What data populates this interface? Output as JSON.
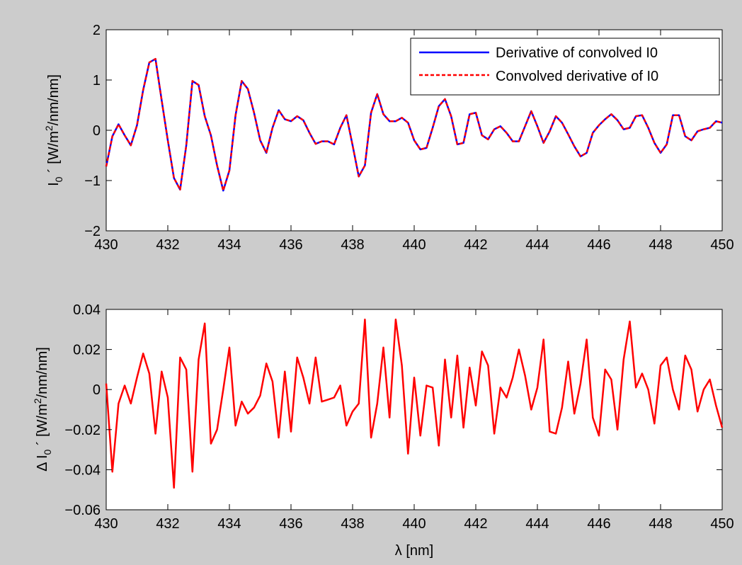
{
  "figure": {
    "background": "#cccccc"
  },
  "chart_data": [
    {
      "type": "line",
      "xlabel": "",
      "ylabel": "I0´ [W/m2/nm/nm]",
      "xlim": [
        430,
        450
      ],
      "ylim": [
        -2,
        2
      ],
      "x_ticks": [
        430,
        432,
        434,
        436,
        438,
        440,
        442,
        444,
        446,
        448,
        450
      ],
      "x_tick_labels": [
        "430",
        "432",
        "434",
        "436",
        "438",
        "440",
        "442",
        "444",
        "446",
        "448",
        "450"
      ],
      "y_ticks": [
        -2,
        -1,
        0,
        1,
        2
      ],
      "y_tick_labels": [
        "−2",
        "−1",
        "0",
        "1",
        "2"
      ],
      "grid": false,
      "legend": {
        "position": "top-right",
        "entries": [
          "Derivative of convolved I0",
          "Convolved derivative of I0"
        ]
      },
      "x": [
        430.0,
        430.2,
        430.4,
        430.6,
        430.8,
        431.0,
        431.2,
        431.4,
        431.6,
        431.8,
        432.0,
        432.2,
        432.4,
        432.6,
        432.8,
        433.0,
        433.2,
        433.4,
        433.6,
        433.8,
        434.0,
        434.2,
        434.4,
        434.6,
        434.8,
        435.0,
        435.2,
        435.4,
        435.6,
        435.8,
        436.0,
        436.2,
        436.4,
        436.6,
        436.8,
        437.0,
        437.2,
        437.4,
        437.6,
        437.8,
        438.0,
        438.2,
        438.4,
        438.6,
        438.8,
        439.0,
        439.2,
        439.4,
        439.6,
        439.8,
        440.0,
        440.2,
        440.4,
        440.6,
        440.8,
        441.0,
        441.2,
        441.4,
        441.6,
        441.8,
        442.0,
        442.2,
        442.4,
        442.6,
        442.8,
        443.0,
        443.2,
        443.4,
        443.6,
        443.8,
        444.0,
        444.2,
        444.4,
        444.6,
        444.8,
        445.0,
        445.2,
        445.4,
        445.6,
        445.8,
        446.0,
        446.2,
        446.4,
        446.6,
        446.8,
        447.0,
        447.2,
        447.4,
        447.6,
        447.8,
        448.0,
        448.2,
        448.4,
        448.6,
        448.8,
        449.0,
        449.2,
        449.4,
        449.6,
        449.8,
        450.0
      ],
      "series": [
        {
          "name": "Derivative of convolved I0",
          "color": "#0000ff",
          "style": "solid",
          "values": [
            -0.72,
            -0.12,
            0.12,
            -0.1,
            -0.3,
            0.1,
            0.8,
            1.35,
            1.42,
            0.6,
            -0.2,
            -0.95,
            -1.18,
            -0.3,
            0.98,
            0.9,
            0.28,
            -0.1,
            -0.7,
            -1.2,
            -0.8,
            0.3,
            0.98,
            0.82,
            0.35,
            -0.2,
            -0.45,
            0.05,
            0.4,
            0.22,
            0.18,
            0.28,
            0.2,
            -0.05,
            -0.27,
            -0.22,
            -0.22,
            -0.28,
            0.05,
            0.3,
            -0.3,
            -0.92,
            -0.7,
            0.35,
            0.72,
            0.32,
            0.18,
            0.18,
            0.25,
            0.15,
            -0.2,
            -0.38,
            -0.35,
            0.05,
            0.48,
            0.62,
            0.28,
            -0.28,
            -0.25,
            0.32,
            0.35,
            -0.1,
            -0.18,
            0.02,
            0.08,
            -0.05,
            -0.22,
            -0.22,
            0.08,
            0.38,
            0.08,
            -0.25,
            -0.02,
            0.28,
            0.15,
            -0.08,
            -0.32,
            -0.52,
            -0.45,
            -0.05,
            0.1,
            0.22,
            0.32,
            0.2,
            0.02,
            0.05,
            0.28,
            0.3,
            0.05,
            -0.25,
            -0.45,
            -0.28,
            0.3,
            0.3,
            -0.12,
            -0.2,
            -0.02,
            0.02,
            0.05,
            0.18,
            0.15
          ]
        },
        {
          "name": "Convolved derivative of I0",
          "color": "#ff0000",
          "style": "dashed",
          "values": [
            -0.72,
            -0.12,
            0.12,
            -0.1,
            -0.3,
            0.1,
            0.8,
            1.35,
            1.42,
            0.6,
            -0.2,
            -0.95,
            -1.18,
            -0.3,
            0.98,
            0.9,
            0.28,
            -0.1,
            -0.7,
            -1.2,
            -0.8,
            0.3,
            0.98,
            0.82,
            0.35,
            -0.2,
            -0.45,
            0.05,
            0.4,
            0.22,
            0.18,
            0.28,
            0.2,
            -0.05,
            -0.27,
            -0.22,
            -0.22,
            -0.28,
            0.05,
            0.3,
            -0.3,
            -0.92,
            -0.7,
            0.35,
            0.72,
            0.32,
            0.18,
            0.18,
            0.25,
            0.15,
            -0.2,
            -0.38,
            -0.35,
            0.05,
            0.48,
            0.62,
            0.28,
            -0.28,
            -0.25,
            0.32,
            0.35,
            -0.1,
            -0.18,
            0.02,
            0.08,
            -0.05,
            -0.22,
            -0.22,
            0.08,
            0.38,
            0.08,
            -0.25,
            -0.02,
            0.28,
            0.15,
            -0.08,
            -0.32,
            -0.52,
            -0.45,
            -0.05,
            0.1,
            0.22,
            0.32,
            0.2,
            0.02,
            0.05,
            0.28,
            0.3,
            0.05,
            -0.25,
            -0.45,
            -0.28,
            0.3,
            0.3,
            -0.12,
            -0.2,
            -0.02,
            0.02,
            0.05,
            0.18,
            0.15
          ]
        }
      ]
    },
    {
      "type": "line",
      "xlabel": "λ [nm]",
      "ylabel": "Δ I0´ [W/m2/nm/nm]",
      "xlim": [
        430,
        450
      ],
      "ylim": [
        -0.06,
        0.04
      ],
      "x_ticks": [
        430,
        432,
        434,
        436,
        438,
        440,
        442,
        444,
        446,
        448,
        450
      ],
      "x_tick_labels": [
        "430",
        "432",
        "434",
        "436",
        "438",
        "440",
        "442",
        "444",
        "446",
        "448",
        "450"
      ],
      "y_ticks": [
        -0.06,
        -0.04,
        -0.02,
        0,
        0.02,
        0.04
      ],
      "y_tick_labels": [
        "−0.06",
        "−0.04",
        "−0.02",
        "0",
        "0.02",
        "0.04"
      ],
      "grid": false,
      "x": [
        430.0,
        430.2,
        430.4,
        430.6,
        430.8,
        431.0,
        431.2,
        431.4,
        431.6,
        431.8,
        432.0,
        432.2,
        432.4,
        432.6,
        432.8,
        433.0,
        433.2,
        433.4,
        433.6,
        433.8,
        434.0,
        434.2,
        434.4,
        434.6,
        434.8,
        435.0,
        435.2,
        435.4,
        435.6,
        435.8,
        436.0,
        436.2,
        436.4,
        436.6,
        436.8,
        437.0,
        437.2,
        437.4,
        437.6,
        437.8,
        438.0,
        438.2,
        438.4,
        438.6,
        438.8,
        439.0,
        439.2,
        439.4,
        439.6,
        439.8,
        440.0,
        440.2,
        440.4,
        440.6,
        440.8,
        441.0,
        441.2,
        441.4,
        441.6,
        441.8,
        442.0,
        442.2,
        442.4,
        442.6,
        442.8,
        443.0,
        443.2,
        443.4,
        443.6,
        443.8,
        444.0,
        444.2,
        444.4,
        444.6,
        444.8,
        445.0,
        445.2,
        445.4,
        445.6,
        445.8,
        446.0,
        446.2,
        446.4,
        446.6,
        446.8,
        447.0,
        447.2,
        447.4,
        447.6,
        447.8,
        448.0,
        448.2,
        448.4,
        448.6,
        448.8,
        449.0,
        449.2,
        449.4,
        449.6,
        449.8,
        450.0
      ],
      "series": [
        {
          "color": "#ff0000",
          "style": "solid",
          "values": [
            0.003,
            -0.041,
            -0.007,
            0.002,
            -0.007,
            0.006,
            0.018,
            0.008,
            -0.022,
            0.009,
            -0.004,
            -0.049,
            0.016,
            0.01,
            -0.041,
            0.015,
            0.033,
            -0.027,
            -0.02,
            0.0,
            0.021,
            -0.018,
            -0.006,
            -0.012,
            -0.009,
            -0.003,
            0.013,
            0.004,
            -0.024,
            0.009,
            -0.021,
            0.016,
            0.006,
            -0.007,
            0.016,
            -0.006,
            -0.005,
            -0.004,
            0.002,
            -0.018,
            -0.011,
            -0.007,
            0.035,
            -0.024,
            -0.007,
            0.021,
            -0.014,
            0.035,
            0.012,
            -0.032,
            0.006,
            -0.023,
            0.002,
            0.001,
            -0.028,
            0.015,
            -0.014,
            0.017,
            -0.019,
            0.011,
            -0.008,
            0.019,
            0.012,
            -0.022,
            0.001,
            -0.004,
            0.006,
            0.02,
            0.007,
            -0.01,
            0.001,
            0.025,
            -0.021,
            -0.022,
            -0.009,
            0.014,
            -0.012,
            0.003,
            0.025,
            -0.014,
            -0.023,
            0.01,
            0.005,
            -0.02,
            0.015,
            0.034,
            0.001,
            0.008,
            0.0,
            -0.017,
            0.012,
            0.016,
            0.0,
            -0.01,
            0.017,
            0.01,
            -0.011,
            0.0,
            0.005,
            -0.008,
            -0.019
          ]
        }
      ]
    }
  ]
}
